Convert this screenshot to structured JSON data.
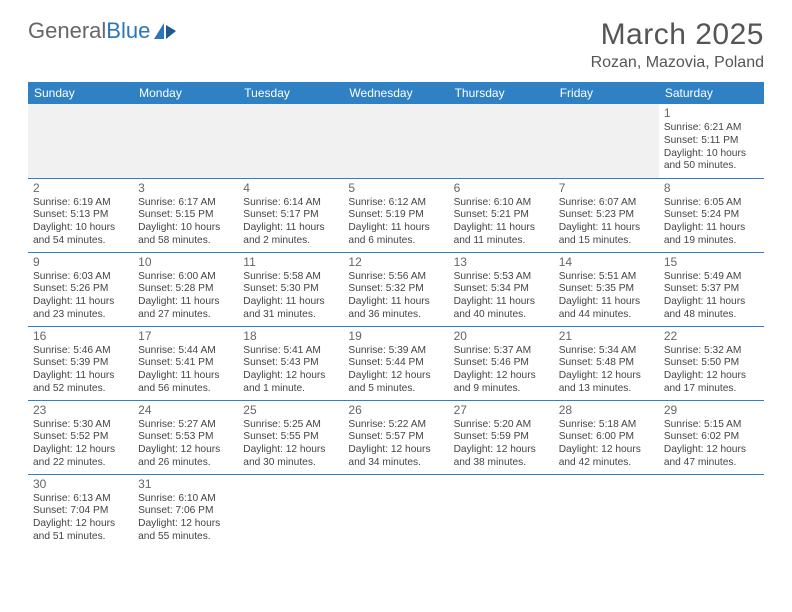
{
  "logo": {
    "text1": "General",
    "text2": "Blue"
  },
  "title": "March 2025",
  "location": "Rozan, Mazovia, Poland",
  "colors": {
    "accent": "#2f81c3",
    "text": "#444",
    "bg": "#ffffff",
    "muted_bg": "#f1f1f1"
  },
  "weekdays": [
    "Sunday",
    "Monday",
    "Tuesday",
    "Wednesday",
    "Thursday",
    "Friday",
    "Saturday"
  ],
  "cells": [
    {
      "n": "",
      "sr": "",
      "ss": "",
      "dl": ""
    },
    {
      "n": "",
      "sr": "",
      "ss": "",
      "dl": ""
    },
    {
      "n": "",
      "sr": "",
      "ss": "",
      "dl": ""
    },
    {
      "n": "",
      "sr": "",
      "ss": "",
      "dl": ""
    },
    {
      "n": "",
      "sr": "",
      "ss": "",
      "dl": ""
    },
    {
      "n": "",
      "sr": "",
      "ss": "",
      "dl": ""
    },
    {
      "n": "1",
      "sr": "Sunrise: 6:21 AM",
      "ss": "Sunset: 5:11 PM",
      "dl": "Daylight: 10 hours and 50 minutes."
    },
    {
      "n": "2",
      "sr": "Sunrise: 6:19 AM",
      "ss": "Sunset: 5:13 PM",
      "dl": "Daylight: 10 hours and 54 minutes."
    },
    {
      "n": "3",
      "sr": "Sunrise: 6:17 AM",
      "ss": "Sunset: 5:15 PM",
      "dl": "Daylight: 10 hours and 58 minutes."
    },
    {
      "n": "4",
      "sr": "Sunrise: 6:14 AM",
      "ss": "Sunset: 5:17 PM",
      "dl": "Daylight: 11 hours and 2 minutes."
    },
    {
      "n": "5",
      "sr": "Sunrise: 6:12 AM",
      "ss": "Sunset: 5:19 PM",
      "dl": "Daylight: 11 hours and 6 minutes."
    },
    {
      "n": "6",
      "sr": "Sunrise: 6:10 AM",
      "ss": "Sunset: 5:21 PM",
      "dl": "Daylight: 11 hours and 11 minutes."
    },
    {
      "n": "7",
      "sr": "Sunrise: 6:07 AM",
      "ss": "Sunset: 5:23 PM",
      "dl": "Daylight: 11 hours and 15 minutes."
    },
    {
      "n": "8",
      "sr": "Sunrise: 6:05 AM",
      "ss": "Sunset: 5:24 PM",
      "dl": "Daylight: 11 hours and 19 minutes."
    },
    {
      "n": "9",
      "sr": "Sunrise: 6:03 AM",
      "ss": "Sunset: 5:26 PM",
      "dl": "Daylight: 11 hours and 23 minutes."
    },
    {
      "n": "10",
      "sr": "Sunrise: 6:00 AM",
      "ss": "Sunset: 5:28 PM",
      "dl": "Daylight: 11 hours and 27 minutes."
    },
    {
      "n": "11",
      "sr": "Sunrise: 5:58 AM",
      "ss": "Sunset: 5:30 PM",
      "dl": "Daylight: 11 hours and 31 minutes."
    },
    {
      "n": "12",
      "sr": "Sunrise: 5:56 AM",
      "ss": "Sunset: 5:32 PM",
      "dl": "Daylight: 11 hours and 36 minutes."
    },
    {
      "n": "13",
      "sr": "Sunrise: 5:53 AM",
      "ss": "Sunset: 5:34 PM",
      "dl": "Daylight: 11 hours and 40 minutes."
    },
    {
      "n": "14",
      "sr": "Sunrise: 5:51 AM",
      "ss": "Sunset: 5:35 PM",
      "dl": "Daylight: 11 hours and 44 minutes."
    },
    {
      "n": "15",
      "sr": "Sunrise: 5:49 AM",
      "ss": "Sunset: 5:37 PM",
      "dl": "Daylight: 11 hours and 48 minutes."
    },
    {
      "n": "16",
      "sr": "Sunrise: 5:46 AM",
      "ss": "Sunset: 5:39 PM",
      "dl": "Daylight: 11 hours and 52 minutes."
    },
    {
      "n": "17",
      "sr": "Sunrise: 5:44 AM",
      "ss": "Sunset: 5:41 PM",
      "dl": "Daylight: 11 hours and 56 minutes."
    },
    {
      "n": "18",
      "sr": "Sunrise: 5:41 AM",
      "ss": "Sunset: 5:43 PM",
      "dl": "Daylight: 12 hours and 1 minute."
    },
    {
      "n": "19",
      "sr": "Sunrise: 5:39 AM",
      "ss": "Sunset: 5:44 PM",
      "dl": "Daylight: 12 hours and 5 minutes."
    },
    {
      "n": "20",
      "sr": "Sunrise: 5:37 AM",
      "ss": "Sunset: 5:46 PM",
      "dl": "Daylight: 12 hours and 9 minutes."
    },
    {
      "n": "21",
      "sr": "Sunrise: 5:34 AM",
      "ss": "Sunset: 5:48 PM",
      "dl": "Daylight: 12 hours and 13 minutes."
    },
    {
      "n": "22",
      "sr": "Sunrise: 5:32 AM",
      "ss": "Sunset: 5:50 PM",
      "dl": "Daylight: 12 hours and 17 minutes."
    },
    {
      "n": "23",
      "sr": "Sunrise: 5:30 AM",
      "ss": "Sunset: 5:52 PM",
      "dl": "Daylight: 12 hours and 22 minutes."
    },
    {
      "n": "24",
      "sr": "Sunrise: 5:27 AM",
      "ss": "Sunset: 5:53 PM",
      "dl": "Daylight: 12 hours and 26 minutes."
    },
    {
      "n": "25",
      "sr": "Sunrise: 5:25 AM",
      "ss": "Sunset: 5:55 PM",
      "dl": "Daylight: 12 hours and 30 minutes."
    },
    {
      "n": "26",
      "sr": "Sunrise: 5:22 AM",
      "ss": "Sunset: 5:57 PM",
      "dl": "Daylight: 12 hours and 34 minutes."
    },
    {
      "n": "27",
      "sr": "Sunrise: 5:20 AM",
      "ss": "Sunset: 5:59 PM",
      "dl": "Daylight: 12 hours and 38 minutes."
    },
    {
      "n": "28",
      "sr": "Sunrise: 5:18 AM",
      "ss": "Sunset: 6:00 PM",
      "dl": "Daylight: 12 hours and 42 minutes."
    },
    {
      "n": "29",
      "sr": "Sunrise: 5:15 AM",
      "ss": "Sunset: 6:02 PM",
      "dl": "Daylight: 12 hours and 47 minutes."
    },
    {
      "n": "30",
      "sr": "Sunrise: 6:13 AM",
      "ss": "Sunset: 7:04 PM",
      "dl": "Daylight: 12 hours and 51 minutes."
    },
    {
      "n": "31",
      "sr": "Sunrise: 6:10 AM",
      "ss": "Sunset: 7:06 PM",
      "dl": "Daylight: 12 hours and 55 minutes."
    },
    {
      "n": "",
      "sr": "",
      "ss": "",
      "dl": ""
    },
    {
      "n": "",
      "sr": "",
      "ss": "",
      "dl": ""
    },
    {
      "n": "",
      "sr": "",
      "ss": "",
      "dl": ""
    },
    {
      "n": "",
      "sr": "",
      "ss": "",
      "dl": ""
    },
    {
      "n": "",
      "sr": "",
      "ss": "",
      "dl": ""
    }
  ]
}
